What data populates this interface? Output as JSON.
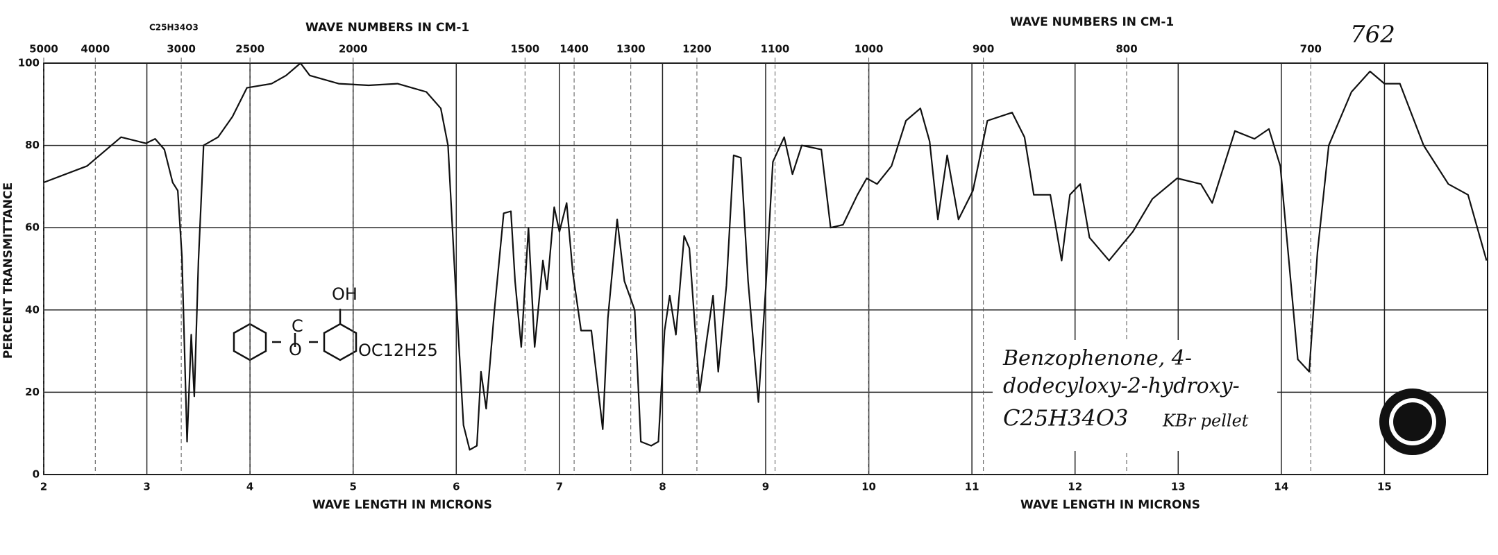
{
  "chart_data": {
    "type": "line",
    "top_axis_label": "WAVE NUMBERS IN CM-1",
    "bottom_axis_label": "WAVE LENGTH IN MICRONS",
    "y_axis_label": "PERCENT TRANSMITTANCE",
    "formula_label": "C25H34O3",
    "sample_number": "762",
    "annotation": [
      "Benzophenone, 4-",
      "dodecyloxy-2-hydroxy-",
      "C25H34O3",
      "KBr pellet"
    ],
    "structure_labels": [
      "OH",
      "OC12H25"
    ],
    "xlim": [
      2,
      16
    ],
    "ylim": [
      0,
      100
    ],
    "xticks": [
      2,
      3,
      4,
      5,
      6,
      7,
      8,
      9,
      10,
      11,
      12,
      13,
      14,
      15
    ],
    "yticks": [
      0,
      20,
      40,
      60,
      80,
      100
    ],
    "x2ticks": [
      5000,
      4000,
      3000,
      2500,
      2000,
      1500,
      1400,
      1300,
      1200,
      1100,
      1000,
      900,
      800,
      700
    ],
    "grid": true,
    "series": [
      {
        "color": "#111111",
        "x": [
          2.0,
          2.42,
          2.75,
          2.99,
          3.08,
          3.17,
          3.25,
          3.3,
          3.34,
          3.39,
          3.43,
          3.46,
          3.5,
          3.55,
          3.69,
          3.83,
          3.97,
          4.21,
          4.35,
          4.49,
          4.58,
          4.86,
          5.15,
          5.43,
          5.71,
          5.85,
          5.92,
          5.99,
          6.07,
          6.13,
          6.2,
          6.24,
          6.29,
          6.37,
          6.46,
          6.53,
          6.57,
          6.63,
          6.7,
          6.76,
          6.84,
          6.88,
          6.95,
          7.0,
          7.07,
          7.13,
          7.21,
          7.31,
          7.42,
          7.47,
          7.56,
          7.63,
          7.73,
          7.79,
          7.89,
          7.96,
          8.02,
          8.07,
          8.13,
          8.21,
          8.26,
          8.36,
          8.43,
          8.49,
          8.54,
          8.62,
          8.69,
          8.76,
          8.83,
          8.93,
          9.0,
          9.07,
          9.18,
          9.26,
          9.35,
          9.54,
          9.63,
          9.75,
          9.89,
          9.98,
          10.08,
          10.22,
          10.36,
          10.5,
          10.59,
          10.67,
          10.76,
          10.87,
          11.01,
          11.15,
          11.39,
          11.51,
          11.6,
          11.76,
          11.87,
          11.95,
          12.05,
          12.14,
          12.33,
          12.56,
          12.75,
          12.99,
          13.22,
          13.33,
          13.55,
          13.74,
          13.88,
          13.99,
          14.16,
          14.27,
          14.35,
          14.46,
          14.68,
          14.86,
          15.0,
          15.15,
          15.38,
          15.62,
          15.81,
          15.99
        ],
        "values": [
          71,
          75,
          82,
          80.5,
          81.6,
          79,
          71,
          69,
          53,
          8,
          34,
          19,
          52,
          80,
          82,
          87,
          94,
          95,
          97,
          100,
          97,
          95,
          94.6,
          95,
          93,
          89,
          80,
          47,
          12,
          6,
          7,
          25,
          16,
          40,
          63.5,
          64,
          47,
          31,
          60,
          31,
          52,
          45,
          65,
          59,
          66,
          49,
          35,
          35,
          11,
          38,
          62,
          47,
          40,
          8,
          7,
          8,
          35,
          43.5,
          34,
          58,
          55,
          20,
          33,
          43.5,
          25,
          46,
          77.6,
          77,
          47,
          17.6,
          45,
          76,
          82,
          73,
          80,
          79,
          60,
          60.7,
          68,
          72,
          70.6,
          75,
          86,
          89,
          81,
          62,
          77.6,
          62,
          69,
          86,
          88,
          82,
          68,
          68,
          52,
          68,
          70.6,
          57.6,
          52,
          59,
          67,
          72,
          70.6,
          66,
          83.5,
          81.6,
          84,
          75,
          28,
          25,
          54,
          80,
          93,
          98,
          95,
          95,
          80,
          70.6,
          68,
          52
        ]
      }
    ]
  }
}
